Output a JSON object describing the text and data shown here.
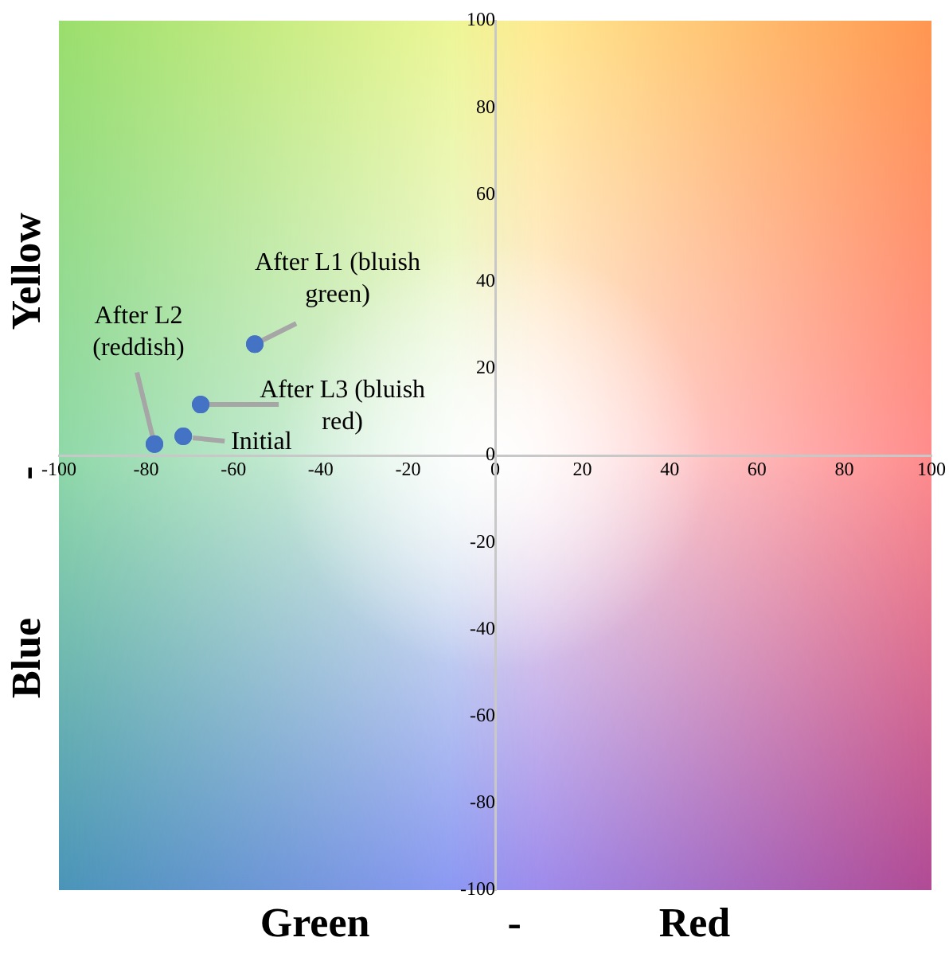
{
  "chart_data": {
    "type": "scatter",
    "xlabel": "Green - Red",
    "ylabel": "Blue - Yellow",
    "series": [
      {
        "color": "#4472c4",
        "x": [
          -71.5,
          -55.1,
          -78.1,
          -67.5
        ],
        "values": [
          4.4,
          25.6,
          2.6,
          11.7
        ]
      }
    ],
    "annotations": [
      {
        "text": "Initial",
        "x": -71.5,
        "y": 4.4
      },
      {
        "text": "After L1 (bluish green)",
        "x": -55.1,
        "y": 25.6
      },
      {
        "text": "After L2 (reddish)",
        "x": -78.1,
        "y": 2.6
      },
      {
        "text": "After L3 (bluish red)",
        "x": -67.5,
        "y": 11.7
      }
    ],
    "xlim": [
      -100,
      100
    ],
    "ylim": [
      -100,
      100
    ],
    "xticks": [
      -100,
      -80,
      -60,
      -40,
      -20,
      0,
      20,
      40,
      60,
      80,
      100
    ],
    "yticks": [
      -100,
      -80,
      -60,
      -40,
      -20,
      0,
      20,
      40,
      60,
      80,
      100
    ],
    "grid": false,
    "legend": false,
    "marker": "circle"
  }
}
